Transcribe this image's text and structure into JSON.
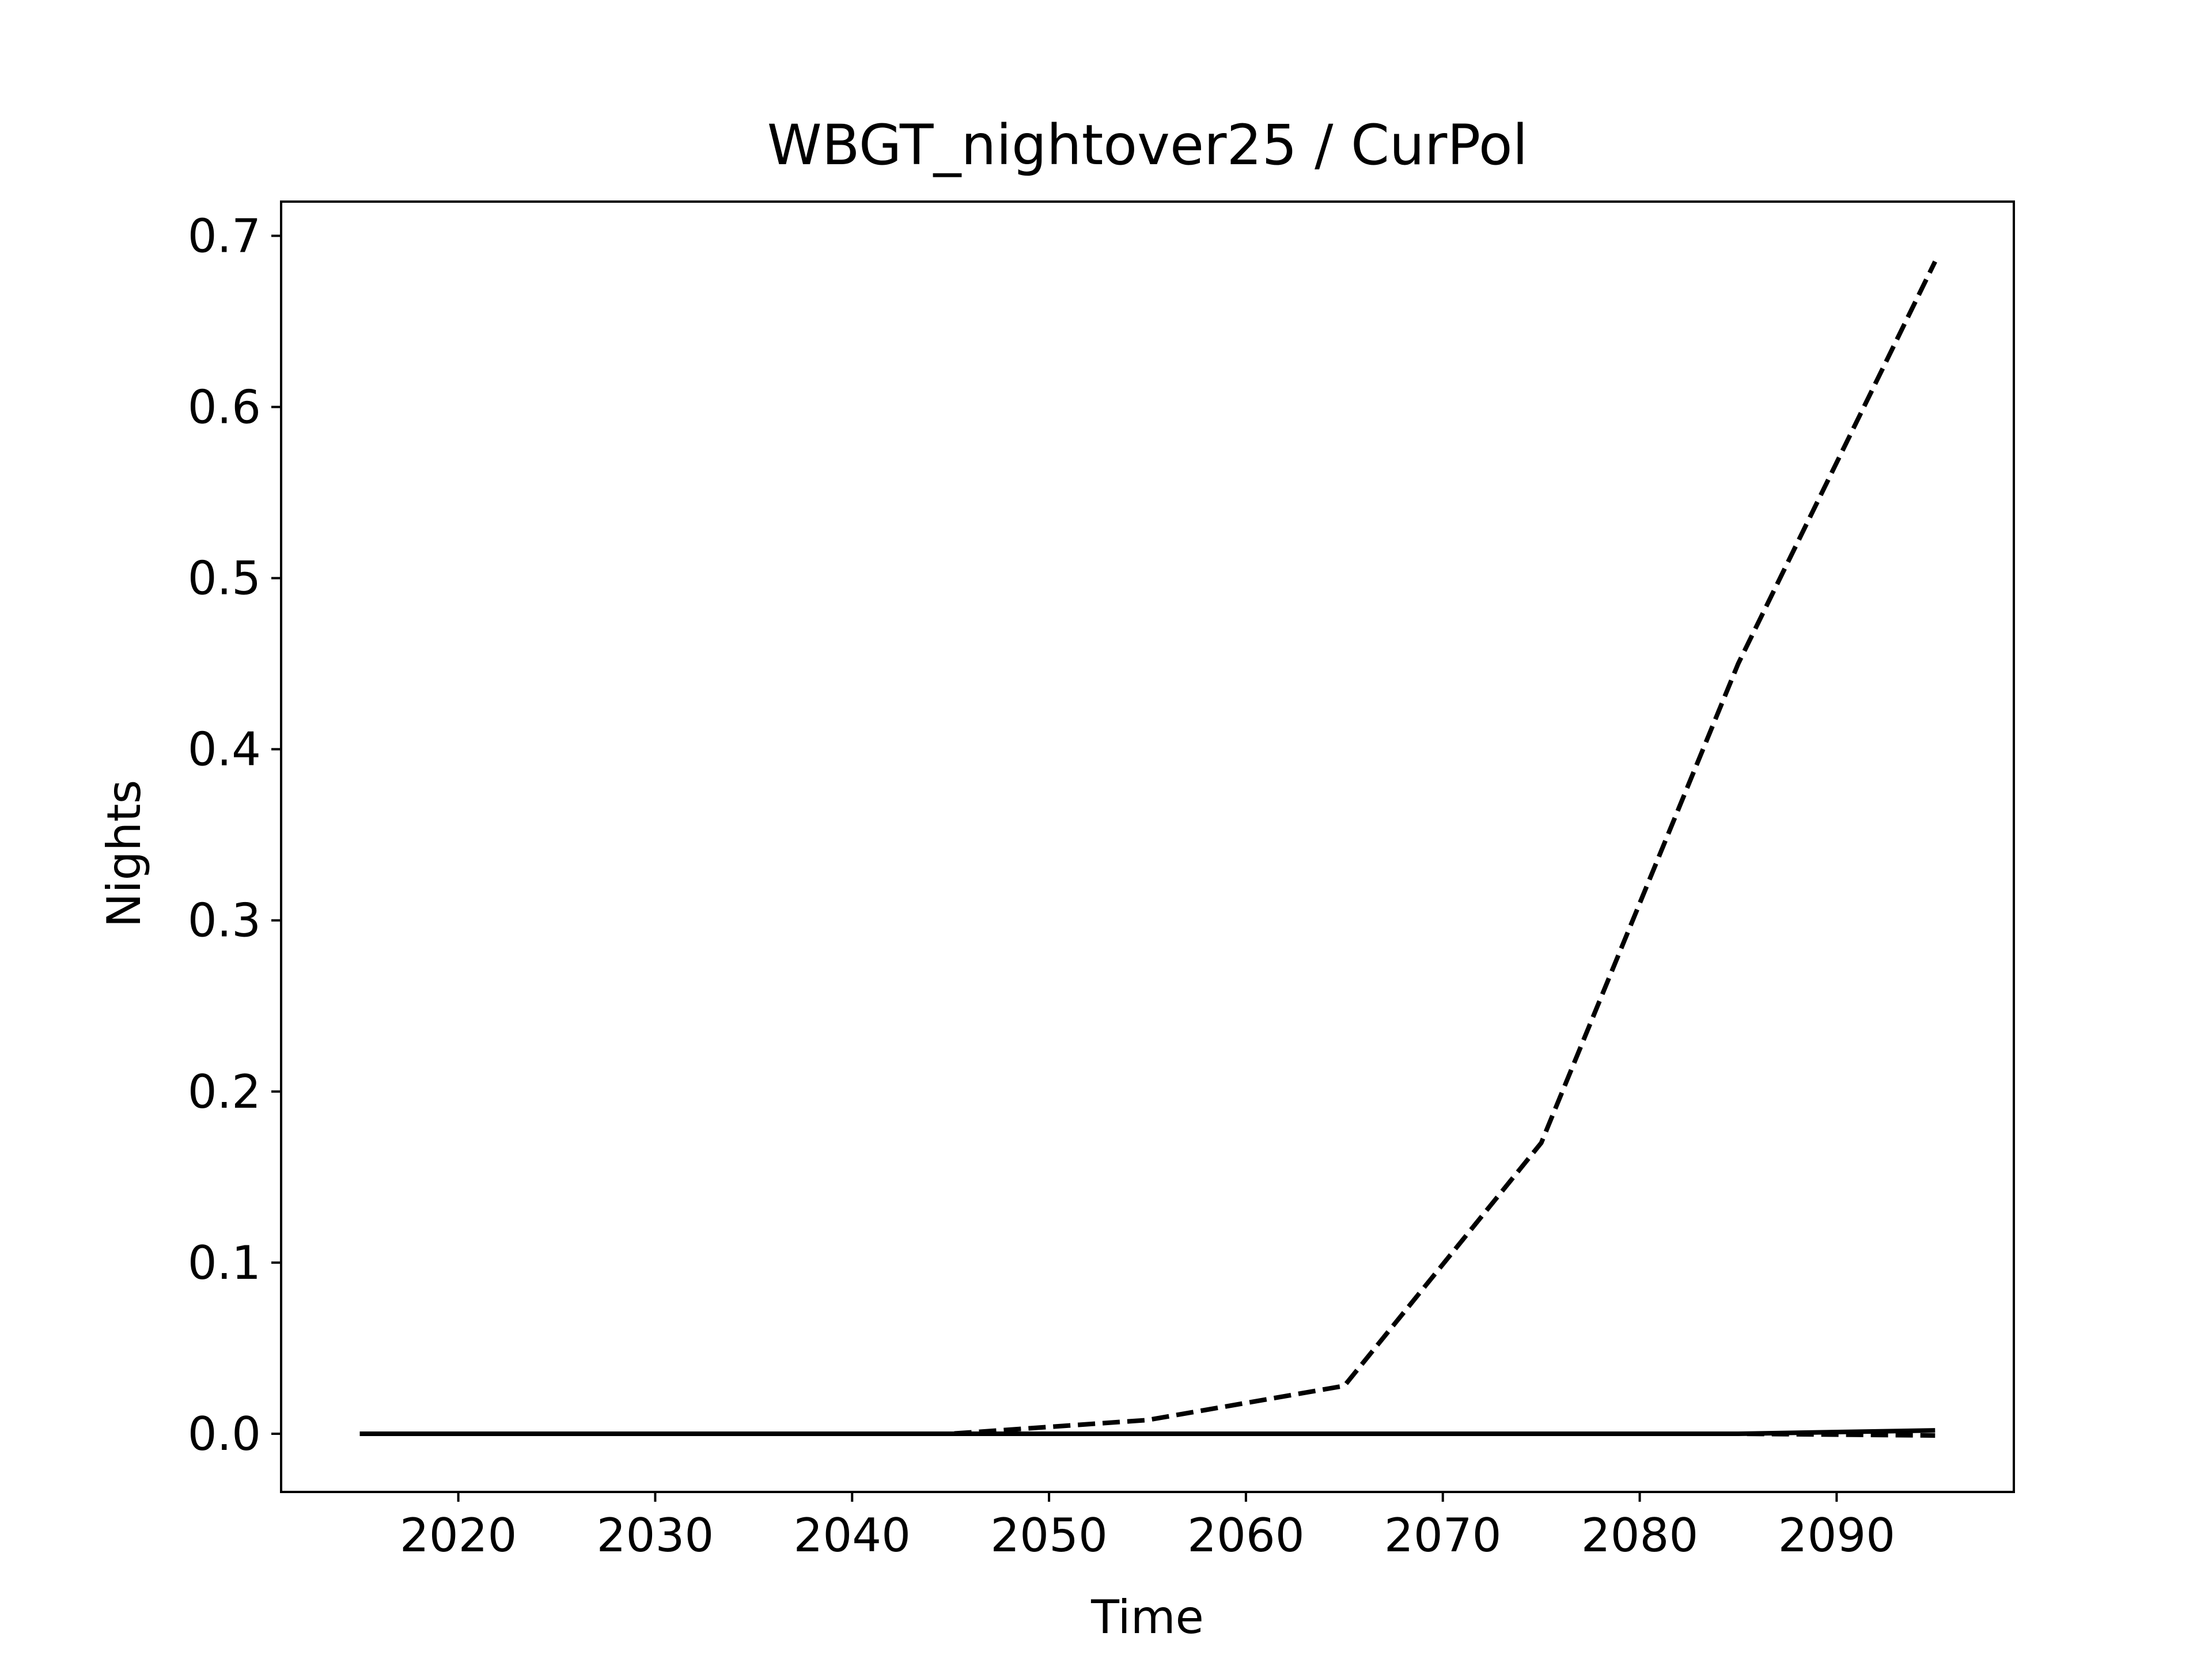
{
  "chart_data": {
    "type": "line",
    "title": "WBGT_nightover25 / CurPol",
    "xlabel": "Time",
    "ylabel": "Nights",
    "xlim": [
      2011,
      2099
    ],
    "ylim": [
      -0.034,
      0.72
    ],
    "xticks": [
      2020,
      2030,
      2040,
      2050,
      2060,
      2070,
      2080,
      2090
    ],
    "yticks": [
      0.0,
      0.1,
      0.2,
      0.3,
      0.4,
      0.5,
      0.6,
      0.7
    ],
    "ytick_labels": [
      "0.0",
      "0.1",
      "0.2",
      "0.3",
      "0.4",
      "0.5",
      "0.6",
      "0.7"
    ],
    "grid": false,
    "legend": false,
    "series": [
      {
        "style": "dashed",
        "color": "#000000",
        "x": [
          2015,
          2025,
          2035,
          2045,
          2055,
          2065,
          2075,
          2085,
          2095
        ],
        "y": [
          0.0,
          0.0,
          0.0,
          0.0,
          0.008,
          0.028,
          0.17,
          0.45,
          0.685
        ]
      },
      {
        "style": "dashed",
        "color": "#000000",
        "x": [
          2015,
          2025,
          2035,
          2045,
          2055,
          2065,
          2075,
          2085,
          2095
        ],
        "y": [
          0.0,
          0.0,
          0.0,
          0.0,
          0.0,
          0.0,
          0.0,
          0.0,
          -0.001
        ]
      },
      {
        "style": "solid",
        "color": "#000000",
        "x": [
          2015,
          2025,
          2035,
          2045,
          2055,
          2065,
          2075,
          2085,
          2095
        ],
        "y": [
          0.0,
          0.0,
          0.0,
          0.0,
          0.0,
          0.0,
          0.0,
          0.0,
          0.002
        ]
      }
    ]
  }
}
